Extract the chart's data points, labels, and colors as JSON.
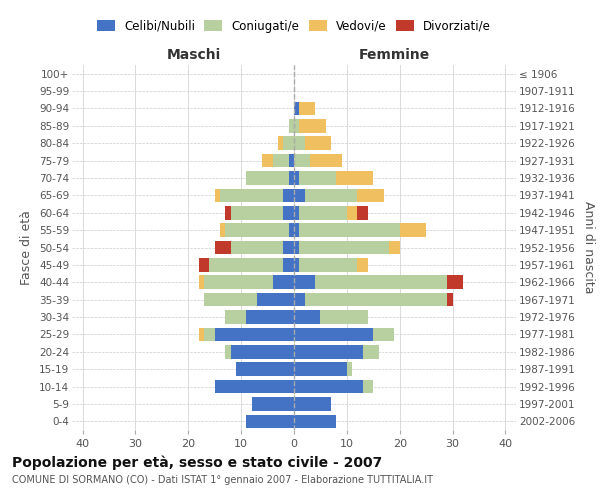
{
  "age_groups": [
    "0-4",
    "5-9",
    "10-14",
    "15-19",
    "20-24",
    "25-29",
    "30-34",
    "35-39",
    "40-44",
    "45-49",
    "50-54",
    "55-59",
    "60-64",
    "65-69",
    "70-74",
    "75-79",
    "80-84",
    "85-89",
    "90-94",
    "95-99",
    "100+"
  ],
  "birth_years": [
    "2002-2006",
    "1997-2001",
    "1992-1996",
    "1987-1991",
    "1982-1986",
    "1977-1981",
    "1972-1976",
    "1967-1971",
    "1962-1966",
    "1957-1961",
    "1952-1956",
    "1947-1951",
    "1942-1946",
    "1937-1941",
    "1932-1936",
    "1927-1931",
    "1922-1926",
    "1917-1921",
    "1912-1916",
    "1907-1911",
    "≤ 1906"
  ],
  "maschi": {
    "celibi": [
      9,
      8,
      15,
      11,
      12,
      15,
      9,
      7,
      4,
      2,
      2,
      1,
      2,
      2,
      1,
      1,
      0,
      0,
      0,
      0,
      0
    ],
    "coniugati": [
      0,
      0,
      0,
      0,
      1,
      2,
      4,
      10,
      13,
      14,
      10,
      12,
      10,
      12,
      8,
      3,
      2,
      1,
      0,
      0,
      0
    ],
    "vedovi": [
      0,
      0,
      0,
      0,
      0,
      1,
      0,
      0,
      1,
      0,
      0,
      1,
      0,
      1,
      0,
      2,
      1,
      0,
      0,
      0,
      0
    ],
    "divorziati": [
      0,
      0,
      0,
      0,
      0,
      0,
      0,
      0,
      0,
      2,
      3,
      0,
      1,
      0,
      0,
      0,
      0,
      0,
      0,
      0,
      0
    ]
  },
  "femmine": {
    "nubili": [
      8,
      7,
      13,
      10,
      13,
      15,
      5,
      2,
      4,
      1,
      1,
      1,
      1,
      2,
      1,
      0,
      0,
      0,
      1,
      0,
      0
    ],
    "coniugate": [
      0,
      0,
      2,
      1,
      3,
      4,
      9,
      27,
      25,
      11,
      17,
      19,
      9,
      10,
      7,
      3,
      2,
      1,
      0,
      0,
      0
    ],
    "vedove": [
      0,
      0,
      0,
      0,
      0,
      0,
      0,
      0,
      0,
      2,
      2,
      5,
      2,
      5,
      7,
      6,
      5,
      5,
      3,
      0,
      0
    ],
    "divorziate": [
      0,
      0,
      0,
      0,
      0,
      0,
      0,
      1,
      3,
      0,
      0,
      0,
      2,
      0,
      0,
      0,
      0,
      0,
      0,
      0,
      0
    ]
  },
  "colors": {
    "celibi_nubili": "#4472c4",
    "coniugati": "#b8cfa0",
    "vedovi": "#f0c060",
    "divorziati": "#c0392b"
  },
  "xlim": 42,
  "title": "Popolazione per età, sesso e stato civile - 2007",
  "subtitle": "COMUNE DI SORMANO (CO) - Dati ISTAT 1° gennaio 2007 - Elaborazione TUTTITALIA.IT",
  "ylabel_left": "Fasce di età",
  "ylabel_right": "Anni di nascita",
  "xlabel_left": "Maschi",
  "xlabel_right": "Femmine"
}
